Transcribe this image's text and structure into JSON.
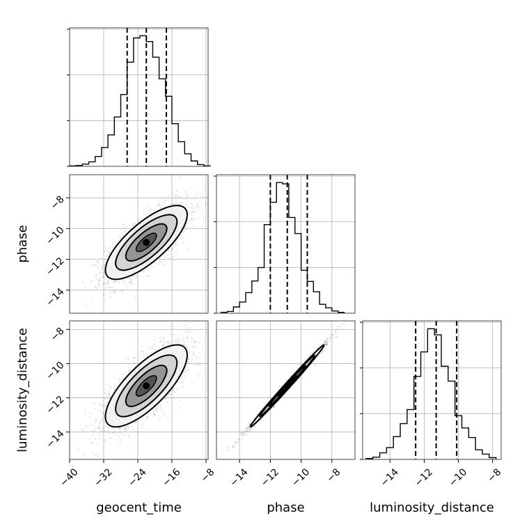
{
  "chart_data": {
    "type": "corner",
    "parameters": [
      "geocent_time",
      "phase",
      "luminosity_distance"
    ],
    "axis_labels": {
      "geocent_time": "geocent_time",
      "phase": "phase",
      "luminosity_distance": "luminosity_distance"
    },
    "ranges": {
      "geocent_time": [
        -40,
        -7.5
      ],
      "phase": [
        -15.5,
        -6.5
      ],
      "luminosity_distance": [
        -15.6,
        -7.5
      ]
    },
    "ticks": {
      "geocent_time": [
        -40,
        -32,
        -24,
        -16,
        -8
      ],
      "phase": [
        -14,
        -12,
        -10,
        -8
      ],
      "luminosity_distance": [
        -14,
        -12,
        -10,
        -8
      ]
    },
    "tick_labels": {
      "geocent_time": [
        "−40",
        "−32",
        "−24",
        "−16",
        "−8"
      ],
      "phase": [
        "−14",
        "−12",
        "−10",
        "−8"
      ],
      "luminosity_distance": [
        "−14",
        "−12",
        "−10",
        "−8"
      ]
    },
    "quantiles": {
      "geocent_time": [
        -26.5,
        -22.0,
        -17.3
      ],
      "phase": [
        -12.0,
        -10.9,
        -9.6
      ],
      "luminosity_distance": [
        -12.5,
        -11.3,
        -10.1
      ]
    },
    "histograms": {
      "geocent_time": {
        "bin_edges": [
          -40,
          -38.5,
          -37,
          -35.5,
          -34,
          -32.5,
          -31,
          -29.5,
          -28,
          -26.5,
          -25,
          -23.5,
          -22,
          -20.5,
          -19,
          -17.5,
          -16,
          -14.5,
          -13,
          -11.5,
          -10,
          -8.5,
          -7
        ],
        "counts": [
          1,
          2,
          5,
          10,
          22,
          42,
          70,
          110,
          160,
          232,
          286,
          291,
          278,
          243,
          195,
          156,
          95,
          55,
          28,
          12,
          4,
          1
        ]
      },
      "phase": {
        "bin_edges": [
          -15.2,
          -14.8,
          -14.4,
          -14.0,
          -13.6,
          -13.2,
          -12.8,
          -12.4,
          -12.0,
          -11.6,
          -11.2,
          -10.8,
          -10.4,
          -10.0,
          -9.6,
          -9.2,
          -8.8,
          -8.4,
          -8.0,
          -7.6,
          -7.2
        ],
        "counts": [
          2,
          4,
          14,
          25,
          46,
          72,
          102,
          198,
          248,
          292,
          289,
          214,
          178,
          96,
          71,
          48,
          20,
          12,
          5,
          2
        ]
      },
      "luminosity_distance": {
        "bin_edges": [
          -15.4,
          -15.0,
          -14.6,
          -14.2,
          -13.8,
          -13.4,
          -13.0,
          -12.6,
          -12.2,
          -11.8,
          -11.4,
          -11.0,
          -10.6,
          -10.2,
          -9.8,
          -9.4,
          -9.0,
          -8.6,
          -8.2,
          -7.8
        ],
        "counts": [
          2,
          5,
          15,
          27,
          52,
          82,
          114,
          190,
          246,
          299,
          285,
          213,
          179,
          100,
          72,
          50,
          22,
          12,
          4
        ]
      }
    },
    "joint": {
      "phase_vs_geocent_time": {
        "mean": [
          -22.0,
          -10.9
        ],
        "std": [
          4.8,
          1.2
        ],
        "correlation": 0.75
      },
      "luminosity_distance_vs_geocent_time": {
        "mean": [
          -22.0,
          -11.3
        ],
        "std": [
          4.8,
          1.2
        ],
        "correlation": 0.75
      },
      "luminosity_distance_vs_phase": {
        "mean": [
          -10.9,
          -11.3
        ],
        "std": [
          1.2,
          1.2
        ],
        "correlation": 0.995
      }
    },
    "grid": true,
    "colors": {
      "line": "#000000",
      "grid": "#b0b0b0",
      "points": "#888888"
    }
  }
}
